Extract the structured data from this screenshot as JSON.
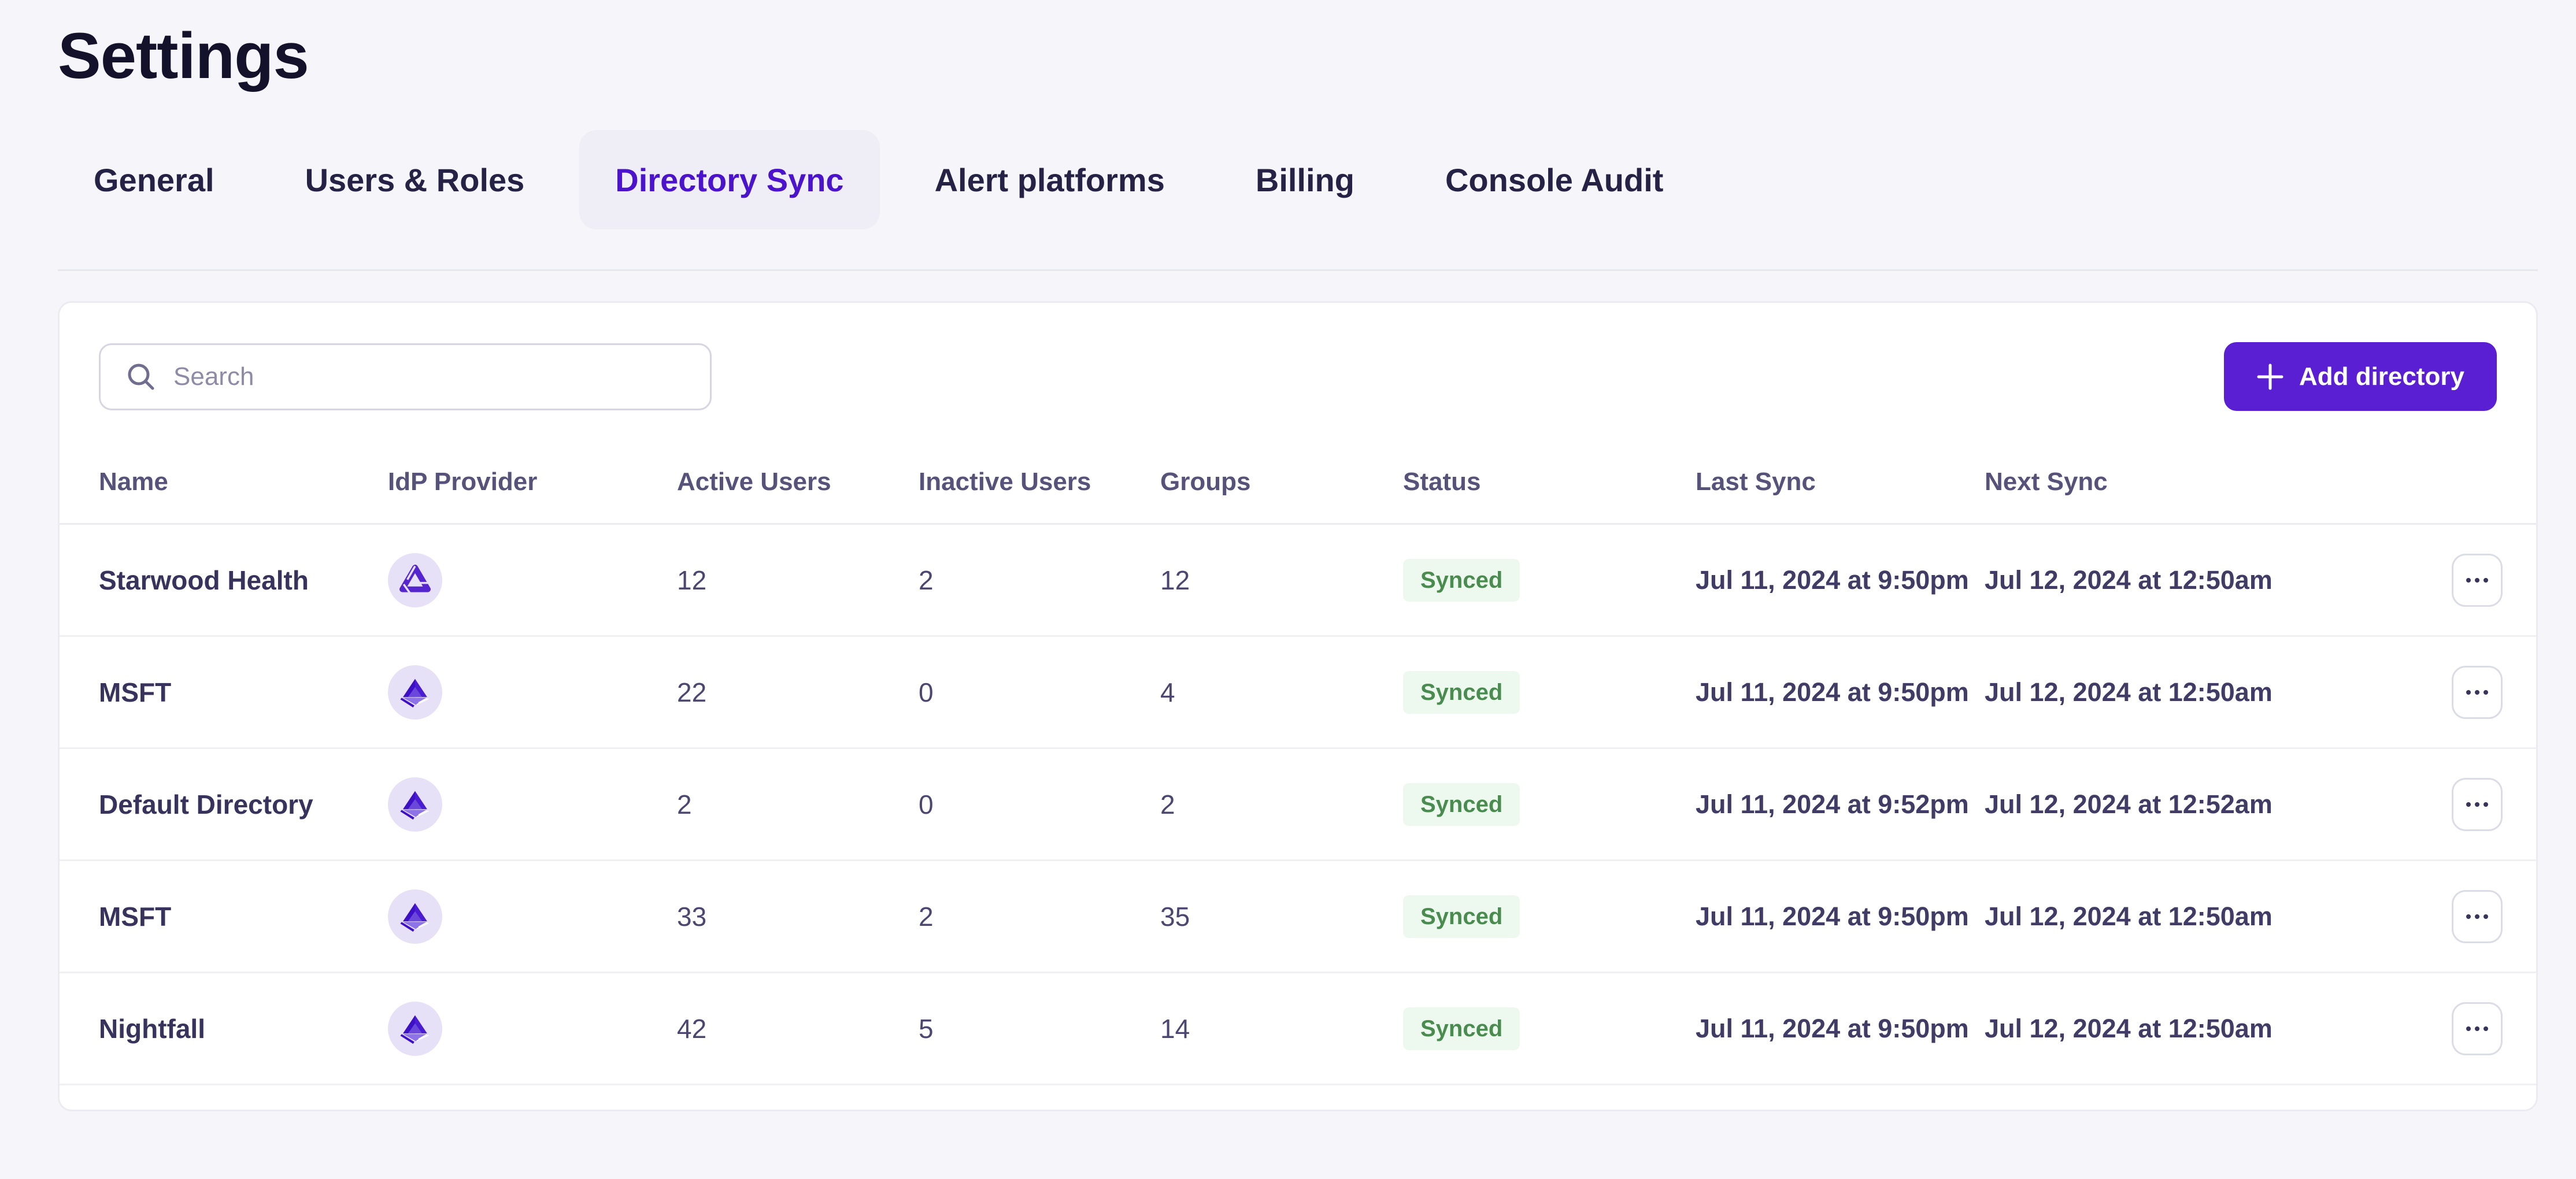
{
  "page": {
    "title": "Settings"
  },
  "tabs": [
    {
      "label": "General",
      "active": false
    },
    {
      "label": "Users & Roles",
      "active": false
    },
    {
      "label": "Directory Sync",
      "active": true
    },
    {
      "label": "Alert platforms",
      "active": false
    },
    {
      "label": "Billing",
      "active": false
    },
    {
      "label": "Console Audit",
      "active": false
    }
  ],
  "toolbar": {
    "search_placeholder": "Search",
    "add_button_label": "Add directory",
    "add_button_icon": "plus-icon",
    "search_icon": "search-icon"
  },
  "table": {
    "columns": [
      "Name",
      "IdP Provider",
      "Active Users",
      "Inactive Users",
      "Groups",
      "Status",
      "Last Sync",
      "Next Sync"
    ],
    "rows": [
      {
        "name": "Starwood Health",
        "idp_icon": "drive-idp-icon",
        "active_users": "12",
        "inactive_users": "2",
        "groups": "12",
        "status": "Synced",
        "last_sync": "Jul 11, 2024 at 9:50pm",
        "next_sync": "Jul 12, 2024 at 12:50am"
      },
      {
        "name": "MSFT",
        "idp_icon": "azure-ad-idp-icon",
        "active_users": "22",
        "inactive_users": "0",
        "groups": "4",
        "status": "Synced",
        "last_sync": "Jul 11, 2024 at 9:50pm",
        "next_sync": "Jul 12, 2024 at 12:50am"
      },
      {
        "name": "Default Directory",
        "idp_icon": "azure-ad-idp-icon",
        "active_users": "2",
        "inactive_users": "0",
        "groups": "2",
        "status": "Synced",
        "last_sync": "Jul 11, 2024 at 9:52pm",
        "next_sync": "Jul 12, 2024 at 12:52am"
      },
      {
        "name": "MSFT",
        "idp_icon": "azure-ad-idp-icon",
        "active_users": "33",
        "inactive_users": "2",
        "groups": "35",
        "status": "Synced",
        "last_sync": "Jul 11, 2024 at 9:50pm",
        "next_sync": "Jul 12, 2024 at 12:50am"
      },
      {
        "name": "Nightfall",
        "idp_icon": "azure-ad-idp-icon",
        "active_users": "42",
        "inactive_users": "5",
        "groups": "14",
        "status": "Synced",
        "last_sync": "Jul 11, 2024 at 9:50pm",
        "next_sync": "Jul 12, 2024 at 12:50am"
      }
    ]
  },
  "colors": {
    "page_background": "#f6f6fa",
    "accent_purple": "#5a1fd3",
    "active_tab_text": "#4c13cd",
    "active_tab_background": "#efeef6",
    "badge_text_green": "#4a8b4f",
    "badge_background_green": "#edf9ee",
    "idp_icon_purple": "#5526cf",
    "idp_icon_purple_dark": "#3d10c6",
    "idp_icon_purple_light": "#8d73e6",
    "idp_circle_background": "#e7e1f8"
  }
}
